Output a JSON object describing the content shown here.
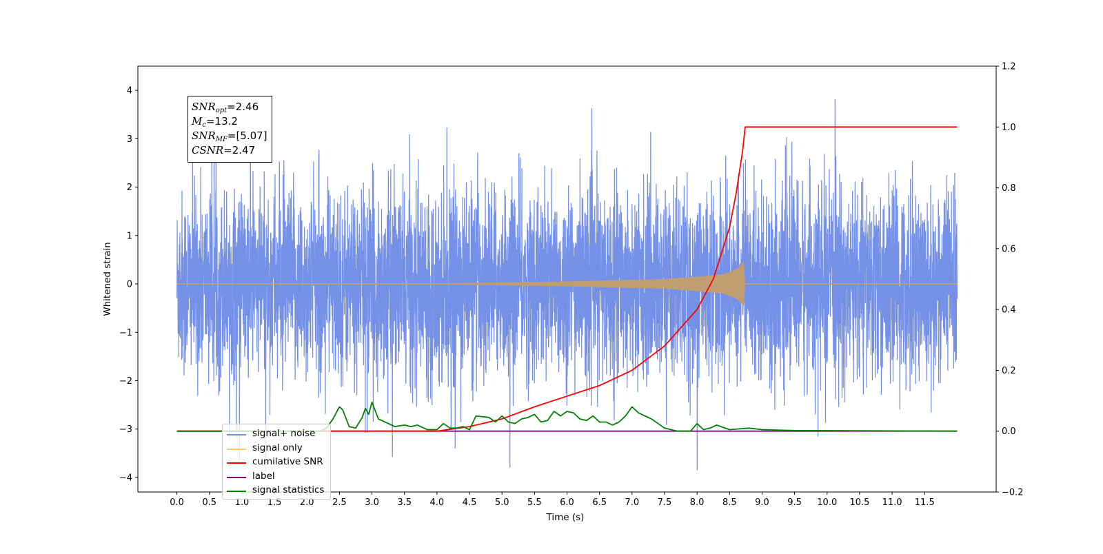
{
  "chart_data": {
    "type": "line",
    "xlabel": "Time (s)",
    "ylabel": "Whitened strain",
    "xlim": [
      -0.6,
      12.6
    ],
    "ylim": [
      -4.3,
      4.5
    ],
    "y2lim": [
      -0.2,
      1.2
    ],
    "x_ticks": [
      "0.0",
      "0.5",
      "1.0",
      "1.5",
      "2.0",
      "2.5",
      "3.0",
      "3.5",
      "4.0",
      "4.5",
      "5.0",
      "5.5",
      "6.0",
      "6.5",
      "7.0",
      "7.5",
      "8.0",
      "8.5",
      "9.0",
      "9.5",
      "10.0",
      "10.5",
      "11.0",
      "11.5"
    ],
    "y_ticks": [
      "4",
      "3",
      "2",
      "1",
      "0",
      "−1",
      "−2",
      "−3",
      "−4"
    ],
    "y2_ticks": [
      "1.2",
      "1.0",
      "0.8",
      "0.6",
      "0.4",
      "0.2",
      "0.0",
      "−0.2"
    ],
    "annotations": {
      "snr_opt": {
        "sym": "SNR",
        "sub": "opt",
        "value": "=2.46"
      },
      "mc": {
        "sym": "M",
        "sub": "c",
        "value": "=13.2"
      },
      "snr_mf": {
        "sym": "SNR",
        "sub": "MF",
        "value": "=[5.07]"
      },
      "csnr": {
        "sym": "CSNR",
        "sub": "",
        "value": "=2.47"
      }
    },
    "legend": {
      "placement": "lower-left",
      "entries": [
        {
          "label": "signal+ noise",
          "color": "#6e8be6"
        },
        {
          "label": "signal only",
          "color": "#ffc870"
        },
        {
          "label": "cumilative SNR",
          "color": "#ff0000"
        },
        {
          "label": "label",
          "color": "#7b0a7b"
        },
        {
          "label": "signal statistics",
          "color": "#008000"
        }
      ]
    },
    "series": [
      {
        "name": "signal+ noise",
        "axis": "left",
        "color": "#6e8be6",
        "x_range": [
          0.0,
          12.0
        ],
        "description_range": [
          -3.9,
          4.15
        ]
      },
      {
        "name": "signal only",
        "axis": "left",
        "color": "#c09e71",
        "x": [
          0.0,
          4.0,
          6.0,
          7.5,
          8.0,
          8.4,
          8.6,
          8.72,
          8.74,
          12.0
        ],
        "envelope": [
          0.0,
          0.01,
          0.05,
          0.1,
          0.15,
          0.2,
          0.3,
          0.45,
          0.0,
          0.0
        ]
      },
      {
        "name": "cumilative SNR",
        "axis": "right",
        "color": "#ff0000",
        "x": [
          0.0,
          4.0,
          4.5,
          5.0,
          5.5,
          6.0,
          6.5,
          7.0,
          7.5,
          8.0,
          8.25,
          8.5,
          8.6,
          8.7,
          8.74,
          12.0
        ],
        "y": [
          0.0,
          0.0,
          0.015,
          0.04,
          0.08,
          0.115,
          0.15,
          0.2,
          0.28,
          0.4,
          0.5,
          0.67,
          0.78,
          0.92,
          1.0,
          1.0
        ]
      },
      {
        "name": "label",
        "axis": "right",
        "color": "#7b0a7b",
        "x": [
          0.0,
          12.0
        ],
        "y": [
          0.0,
          0.0
        ]
      },
      {
        "name": "signal statistics",
        "axis": "right",
        "color": "#008000",
        "x": [
          0.0,
          2.2,
          2.3,
          2.4,
          2.5,
          2.55,
          2.65,
          2.75,
          2.85,
          2.9,
          2.95,
          3.0,
          3.1,
          3.2,
          3.35,
          3.5,
          3.6,
          3.7,
          3.8,
          3.85,
          4.0,
          4.1,
          4.2,
          4.3,
          4.4,
          4.5,
          4.6,
          4.8,
          4.9,
          5.0,
          5.1,
          5.2,
          5.3,
          5.4,
          5.5,
          5.6,
          5.7,
          5.8,
          5.9,
          6.0,
          6.1,
          6.2,
          6.3,
          6.4,
          6.5,
          6.6,
          6.7,
          6.8,
          6.9,
          7.0,
          7.1,
          7.2,
          7.3,
          7.5,
          7.7,
          7.9,
          8.0,
          8.1,
          8.2,
          8.3,
          8.5,
          8.8,
          9.0,
          9.5,
          12.0
        ],
        "y": [
          0.0,
          0.0,
          0.01,
          0.04,
          0.08,
          0.07,
          0.015,
          0.01,
          0.045,
          0.075,
          0.055,
          0.095,
          0.04,
          0.03,
          0.015,
          0.02,
          0.015,
          0.02,
          0.01,
          0.005,
          0.005,
          0.025,
          0.01,
          0.01,
          0.015,
          0.005,
          0.05,
          0.045,
          0.03,
          0.05,
          0.03,
          0.025,
          0.04,
          0.045,
          0.055,
          0.03,
          0.035,
          0.065,
          0.05,
          0.065,
          0.06,
          0.04,
          0.035,
          0.05,
          0.03,
          0.03,
          0.02,
          0.03,
          0.05,
          0.08,
          0.06,
          0.05,
          0.04,
          0.01,
          0.0,
          0.0,
          0.025,
          0.005,
          0.01,
          0.02,
          0.005,
          0.01,
          0.005,
          0.002,
          0.0
        ]
      }
    ]
  }
}
